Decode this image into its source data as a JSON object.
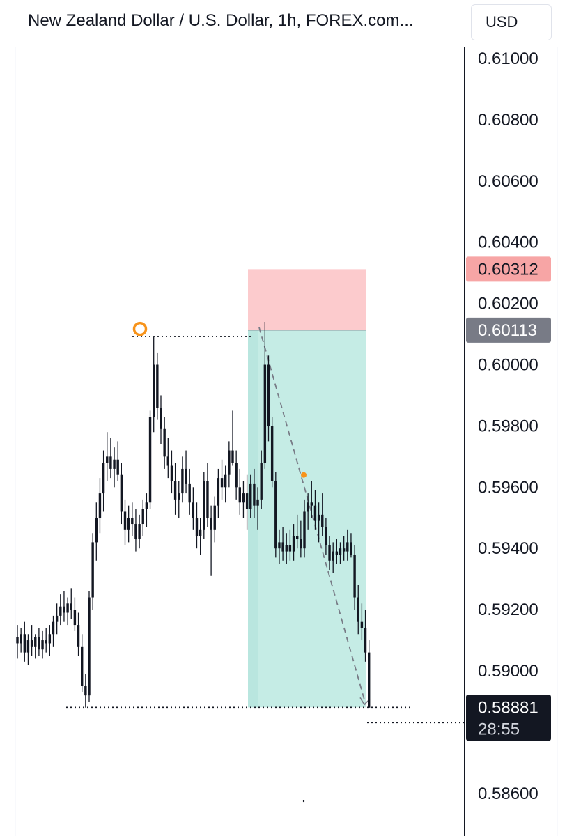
{
  "header": {
    "title": "New Zealand Dollar / U.S. Dollar, 1h, FOREX.com...",
    "currency_label": "USD"
  },
  "chart_data": {
    "type": "candlestick",
    "symbol": "NZDUSD",
    "timeframe": "1h",
    "ylim": [
      0.5856,
      0.6108
    ],
    "y_ticks": [
      "0.61000",
      "0.60800",
      "0.60600",
      "0.60400",
      "0.60200",
      "0.60000",
      "0.59800",
      "0.59600",
      "0.59400",
      "0.59200",
      "0.59000",
      "0.58600"
    ],
    "y_tick_values": [
      0.61,
      0.608,
      0.606,
      0.604,
      0.602,
      0.6,
      0.598,
      0.596,
      0.594,
      0.592,
      0.59,
      0.586
    ],
    "price_labels": {
      "stop_loss": {
        "value": "0.60312",
        "price": 0.60312,
        "color": "#f7a5a5"
      },
      "entry": {
        "value": "0.60113",
        "price": 0.60113,
        "color": "#787b86"
      },
      "current": {
        "value": "0.58881",
        "price": 0.58881,
        "countdown": "28:55",
        "color": "#131722"
      }
    },
    "short_position": {
      "stop_price": 0.60312,
      "entry_price": 0.60113,
      "target_price": 0.58881,
      "loss_color": "#fccbcd",
      "profit_color": "#c5ece5"
    },
    "swing_high": 0.60092,
    "swing_low": 0.58881,
    "marker_price": 0.5964,
    "accent_color": "#f7931a",
    "candles": [
      [
        0.5911,
        0.5915,
        0.5904,
        0.5909
      ],
      [
        0.5909,
        0.5914,
        0.5906,
        0.5912
      ],
      [
        0.5912,
        0.5916,
        0.5903,
        0.5906
      ],
      [
        0.5906,
        0.5912,
        0.5902,
        0.591
      ],
      [
        0.591,
        0.5915,
        0.5905,
        0.5908
      ],
      [
        0.5908,
        0.5912,
        0.5904,
        0.5911
      ],
      [
        0.5911,
        0.5914,
        0.5905,
        0.5907
      ],
      [
        0.5907,
        0.5913,
        0.5904,
        0.591
      ],
      [
        0.591,
        0.5914,
        0.5906,
        0.5909
      ],
      [
        0.5909,
        0.5915,
        0.5905,
        0.5912
      ],
      [
        0.5912,
        0.5918,
        0.5908,
        0.5916
      ],
      [
        0.5916,
        0.5922,
        0.5912,
        0.5918
      ],
      [
        0.5918,
        0.5925,
        0.5915,
        0.5921
      ],
      [
        0.5921,
        0.5926,
        0.5916,
        0.5919
      ],
      [
        0.5919,
        0.5924,
        0.5915,
        0.5922
      ],
      [
        0.5922,
        0.5927,
        0.5917,
        0.592
      ],
      [
        0.592,
        0.5924,
        0.5913,
        0.5915
      ],
      [
        0.5915,
        0.5919,
        0.5905,
        0.5908
      ],
      [
        0.5908,
        0.5912,
        0.5893,
        0.5895
      ],
      [
        0.5895,
        0.5899,
        0.5888,
        0.5892
      ],
      [
        0.5892,
        0.5926,
        0.589,
        0.5924
      ],
      [
        0.5924,
        0.5945,
        0.592,
        0.5942
      ],
      [
        0.5942,
        0.5955,
        0.5936,
        0.595
      ],
      [
        0.595,
        0.5963,
        0.5945,
        0.5958
      ],
      [
        0.5958,
        0.5972,
        0.5952,
        0.5968
      ],
      [
        0.5968,
        0.5978,
        0.5962,
        0.597
      ],
      [
        0.597,
        0.5976,
        0.5963,
        0.5966
      ],
      [
        0.5966,
        0.5973,
        0.596,
        0.5969
      ],
      [
        0.5969,
        0.5975,
        0.5962,
        0.5964
      ],
      [
        0.5964,
        0.5968,
        0.5948,
        0.5952
      ],
      [
        0.5952,
        0.5956,
        0.5941,
        0.5946
      ],
      [
        0.5946,
        0.5954,
        0.5942,
        0.595
      ],
      [
        0.595,
        0.5955,
        0.5944,
        0.5948
      ],
      [
        0.5948,
        0.5953,
        0.5939,
        0.5943
      ],
      [
        0.5943,
        0.5951,
        0.594,
        0.5948
      ],
      [
        0.5948,
        0.5956,
        0.5944,
        0.5953
      ],
      [
        0.5953,
        0.5958,
        0.5947,
        0.5955
      ],
      [
        0.5955,
        0.5985,
        0.5953,
        0.5983
      ],
      [
        0.5983,
        0.6009,
        0.5978,
        0.6
      ],
      [
        0.6,
        0.6004,
        0.5982,
        0.5986
      ],
      [
        0.5986,
        0.599,
        0.5974,
        0.5979
      ],
      [
        0.5979,
        0.5983,
        0.5966,
        0.597
      ],
      [
        0.597,
        0.5976,
        0.5963,
        0.5967
      ],
      [
        0.5967,
        0.5972,
        0.5958,
        0.5962
      ],
      [
        0.5962,
        0.5968,
        0.5951,
        0.5956
      ],
      [
        0.5956,
        0.5962,
        0.595,
        0.5958
      ],
      [
        0.5958,
        0.597,
        0.5955,
        0.5966
      ],
      [
        0.5966,
        0.5972,
        0.5958,
        0.5961
      ],
      [
        0.5961,
        0.5966,
        0.5951,
        0.5955
      ],
      [
        0.5955,
        0.596,
        0.5946,
        0.595
      ],
      [
        0.595,
        0.5955,
        0.594,
        0.5944
      ],
      [
        0.5944,
        0.595,
        0.5938,
        0.5946
      ],
      [
        0.5946,
        0.5965,
        0.5943,
        0.5962
      ],
      [
        0.5962,
        0.5968,
        0.5947,
        0.595
      ],
      [
        0.595,
        0.5954,
        0.5931,
        0.5946
      ],
      [
        0.5946,
        0.5957,
        0.5942,
        0.5954
      ],
      [
        0.5954,
        0.5966,
        0.595,
        0.5963
      ],
      [
        0.5963,
        0.5969,
        0.5956,
        0.596
      ],
      [
        0.596,
        0.5967,
        0.5955,
        0.5964
      ],
      [
        0.5964,
        0.5975,
        0.596,
        0.5972
      ],
      [
        0.5972,
        0.5985,
        0.5967,
        0.5968
      ],
      [
        0.5968,
        0.5972,
        0.5956,
        0.596
      ],
      [
        0.596,
        0.5966,
        0.5951,
        0.5955
      ],
      [
        0.5955,
        0.5962,
        0.595,
        0.5958
      ],
      [
        0.5958,
        0.5964,
        0.5946,
        0.5953
      ],
      [
        0.5953,
        0.5964,
        0.595,
        0.5961
      ],
      [
        0.5961,
        0.5966,
        0.595,
        0.5954
      ],
      [
        0.5954,
        0.596,
        0.5946,
        0.5956
      ],
      [
        0.5956,
        0.5972,
        0.5953,
        0.5968
      ],
      [
        0.5968,
        0.6014,
        0.5966,
        0.6
      ],
      [
        0.6,
        0.6003,
        0.5975,
        0.598
      ],
      [
        0.598,
        0.5983,
        0.596,
        0.5962
      ],
      [
        0.5962,
        0.5965,
        0.5937,
        0.594
      ],
      [
        0.594,
        0.5946,
        0.5935,
        0.5942
      ],
      [
        0.5942,
        0.5947,
        0.5936,
        0.5939
      ],
      [
        0.5939,
        0.5945,
        0.5935,
        0.5941
      ],
      [
        0.5941,
        0.5946,
        0.5936,
        0.5939
      ],
      [
        0.5939,
        0.5948,
        0.5936,
        0.5944
      ],
      [
        0.5944,
        0.5951,
        0.594,
        0.5943
      ],
      [
        0.5943,
        0.5949,
        0.5937,
        0.594
      ],
      [
        0.594,
        0.5956,
        0.5937,
        0.5952
      ],
      [
        0.5952,
        0.5958,
        0.5946,
        0.5955
      ],
      [
        0.5955,
        0.5962,
        0.595,
        0.5954
      ],
      [
        0.5954,
        0.5959,
        0.5946,
        0.5949
      ],
      [
        0.5949,
        0.5955,
        0.5942,
        0.5951
      ],
      [
        0.5951,
        0.5958,
        0.5944,
        0.5947
      ],
      [
        0.5947,
        0.595,
        0.5938,
        0.5941
      ],
      [
        0.5941,
        0.5944,
        0.5933,
        0.5936
      ],
      [
        0.5936,
        0.5942,
        0.5932,
        0.5939
      ],
      [
        0.5939,
        0.5943,
        0.5935,
        0.5938
      ],
      [
        0.5938,
        0.5942,
        0.5935,
        0.594
      ],
      [
        0.594,
        0.5944,
        0.5936,
        0.5939
      ],
      [
        0.5939,
        0.5946,
        0.5936,
        0.5942
      ],
      [
        0.5942,
        0.5945,
        0.5937,
        0.5938
      ],
      [
        0.5938,
        0.5941,
        0.592,
        0.5924
      ],
      [
        0.5924,
        0.5928,
        0.5912,
        0.5916
      ],
      [
        0.5916,
        0.5922,
        0.591,
        0.5914
      ],
      [
        0.5914,
        0.592,
        0.5903,
        0.5906
      ],
      [
        0.5906,
        0.591,
        0.5888,
        0.5888
      ]
    ]
  }
}
